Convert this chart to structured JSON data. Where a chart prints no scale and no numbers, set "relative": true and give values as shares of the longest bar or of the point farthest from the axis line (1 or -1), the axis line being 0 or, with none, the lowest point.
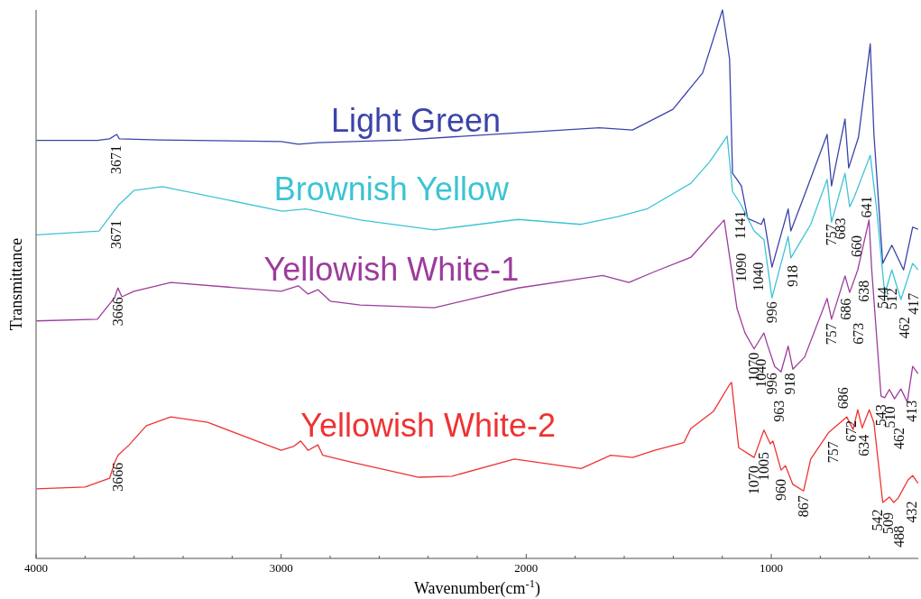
{
  "chart_data": {
    "type": "line",
    "relative": true,
    "xlabel": "Wavenumber(cm$^{-1}$)",
    "ylabel": "Transmittance",
    "xlim": [
      4000,
      400
    ],
    "xticks": [
      4000,
      {
        "value": 3800,
        "label": null
      },
      {
        "value": 3600,
        "label": null
      },
      {
        "value": 3400,
        "label": null
      },
      {
        "value": 3200,
        "label": null
      },
      3000,
      {
        "value": 2800,
        "label": null
      },
      {
        "value": 2600,
        "label": null
      },
      {
        "value": 2400,
        "label": null
      },
      {
        "value": 2200,
        "label": null
      },
      2000,
      {
        "value": 1800,
        "label": null
      },
      {
        "value": 1600,
        "label": null
      },
      {
        "value": 1400,
        "label": null
      },
      {
        "value": 1200,
        "label": null
      },
      1000,
      {
        "value": 800,
        "label": null
      },
      {
        "value": 600,
        "label": null
      }
    ],
    "grid": false,
    "marker": "none",
    "line_style": "solid",
    "series": [
      {
        "name": "Light Green",
        "color": "#3b44a8",
        "x": [
          4000,
          3750,
          3700,
          3671,
          3660,
          3500,
          3000,
          2930,
          2850,
          2500,
          1702,
          1566,
          1401,
          1280,
          1199,
          1170,
          1158,
          1140,
          1122,
          1096,
          1041,
          1030,
          997,
          931,
          920,
          864,
          772,
          754,
          699,
          684,
          644,
          596,
          581,
          545,
          508,
          460,
          423,
          401
        ],
        "values": [
          0.762,
          0.762,
          0.765,
          0.773,
          0.765,
          0.763,
          0.76,
          0.755,
          0.758,
          0.763,
          0.785,
          0.781,
          0.819,
          0.885,
          1,
          0.91,
          0.702,
          0.691,
          0.679,
          0.62,
          0.609,
          0.62,
          0.531,
          0.637,
          0.597,
          0.663,
          0.773,
          0.679,
          0.801,
          0.712,
          0.768,
          0.938,
          0.773,
          0.538,
          0.571,
          0.526,
          0.604,
          0.6
        ]
      },
      {
        "name": "Brownish Yellow",
        "color": "#3cc4d4",
        "x": [
          4000,
          3743,
          3666,
          3600,
          3485,
          2996,
          2900,
          2677,
          2375,
          2033,
          1776,
          1625,
          1508,
          1328,
          1250,
          1180,
          1158,
          1125,
          1070,
          1030,
          997,
          931,
          920,
          839,
          772,
          754,
          699,
          680,
          662,
          596,
          570,
          537,
          508,
          471,
          423,
          401
        ],
        "values": [
          0.59,
          0.597,
          0.643,
          0.671,
          0.678,
          0.633,
          0.637,
          0.617,
          0.599,
          0.618,
          0.609,
          0.623,
          0.637,
          0.684,
          0.724,
          0.77,
          0.669,
          0.646,
          0.597,
          0.581,
          0.475,
          0.587,
          0.548,
          0.609,
          0.691,
          0.613,
          0.702,
          0.641,
          0.658,
          0.735,
          0.637,
          0.482,
          0.526,
          0.472,
          0.538,
          0.526
        ]
      },
      {
        "name": "Yellowish White-1",
        "color": "#9c3c9c",
        "x": [
          4000,
          3750,
          3680,
          3666,
          3650,
          3600,
          3450,
          3000,
          2930,
          2890,
          2850,
          2800,
          2677,
          2375,
          2033,
          1776,
          1688,
          1581,
          1475,
          1328,
          1192,
          1162,
          1140,
          1107,
          1070,
          1048,
          1030,
          1016,
          986,
          960,
          931,
          912,
          864,
          772,
          754,
          699,
          680,
          647,
          601,
          590,
          552,
          537,
          518,
          497,
          471,
          445,
          423,
          401
        ],
        "values": [
          0.433,
          0.436,
          0.475,
          0.493,
          0.477,
          0.487,
          0.503,
          0.487,
          0.497,
          0.482,
          0.49,
          0.469,
          0.462,
          0.457,
          0.493,
          0.51,
          0.516,
          0.503,
          0.523,
          0.549,
          0.617,
          0.526,
          0.456,
          0.411,
          0.382,
          0.398,
          0.411,
          0.39,
          0.35,
          0.34,
          0.387,
          0.345,
          0.367,
          0.474,
          0.436,
          0.515,
          0.485,
          0.526,
          0.617,
          0.526,
          0.296,
          0.293,
          0.308,
          0.291,
          0.309,
          0.285,
          0.35,
          0.337
        ]
      },
      {
        "name": "Yellowish White-2",
        "color": "#ee3333",
        "x": [
          4000,
          3800,
          3700,
          3680,
          3666,
          3620,
          3550,
          3450,
          3300,
          3100,
          3000,
          2950,
          2920,
          2890,
          2850,
          2830,
          2700,
          2438,
          2302,
          2048,
          1776,
          1655,
          1566,
          1475,
          1357,
          1328,
          1236,
          1170,
          1162,
          1133,
          1070,
          1030,
          1004,
          993,
          960,
          942,
          912,
          868,
          839,
          765,
          692,
          666,
          647,
          629,
          600,
          581,
          545,
          518,
          500,
          482,
          442,
          423,
          401
        ],
        "values": [
          0.127,
          0.13,
          0.146,
          0.174,
          0.188,
          0.207,
          0.242,
          0.258,
          0.248,
          0.214,
          0.197,
          0.204,
          0.214,
          0.197,
          0.207,
          0.188,
          0.174,
          0.148,
          0.15,
          0.181,
          0.164,
          0.188,
          0.184,
          0.197,
          0.211,
          0.237,
          0.268,
          0.317,
          0.321,
          0.202,
          0.184,
          0.234,
          0.209,
          0.214,
          0.161,
          0.169,
          0.135,
          0.123,
          0.181,
          0.23,
          0.258,
          0.235,
          0.271,
          0.238,
          0.271,
          0.247,
          0.102,
          0.112,
          0.102,
          0.11,
          0.143,
          0.151,
          0.137
        ]
      }
    ],
    "annotations": [
      {
        "text": "3671",
        "x": 3671,
        "y": 0.773
      },
      {
        "text": "3671",
        "x": 3671,
        "y": 0.64
      },
      {
        "text": "3666",
        "x": 3666,
        "y": 0.493
      },
      {
        "text": "3666",
        "x": 3666,
        "y": 0.188
      },
      {
        "text": "1141",
        "x": 1141,
        "y": 0.691
      },
      {
        "text": "1090",
        "x": 1090,
        "y": 0.619
      },
      {
        "text": "1040",
        "x": 1040,
        "y": 0.609
      },
      {
        "text": "918",
        "x": 918,
        "y": 0.597
      },
      {
        "text": "757",
        "x": 757,
        "y": 0.679
      },
      {
        "text": "683",
        "x": 683,
        "y": 0.644
      },
      {
        "text": "660",
        "x": 660,
        "y": 0.658
      },
      {
        "text": "641",
        "x": 641,
        "y": 0.68
      },
      {
        "text": "996",
        "x": 996,
        "y": 0.475
      },
      {
        "text": "544",
        "x": 544,
        "y": 0.485
      },
      {
        "text": "512",
        "x": 512,
        "y": 0.521
      },
      {
        "text": "462",
        "x": 462,
        "y": 0.48
      },
      {
        "text": "417",
        "x": 417,
        "y": 0.535
      },
      {
        "text": "1070",
        "x": 1070,
        "y": 0.382
      },
      {
        "text": "1040",
        "x": 1040,
        "y": 0.4
      },
      {
        "text": "996",
        "x": 996,
        "y": 0.363
      },
      {
        "text": "963",
        "x": 963,
        "y": 0.341
      },
      {
        "text": "918",
        "x": 918,
        "y": 0.353
      },
      {
        "text": "757",
        "x": 757,
        "y": 0.442
      },
      {
        "text": "686",
        "x": 686,
        "y": 0.494
      },
      {
        "text": "673",
        "x": 673,
        "y": 0.494
      },
      {
        "text": "638",
        "x": 638,
        "y": 0.548
      },
      {
        "text": "543",
        "x": 543,
        "y": 0.294
      },
      {
        "text": "510",
        "x": 510,
        "y": 0.302
      },
      {
        "text": "462",
        "x": 462,
        "y": 0.301
      },
      {
        "text": "413",
        "x": 413,
        "y": 0.344
      },
      {
        "text": "1070",
        "x": 1070,
        "y": 0.184
      },
      {
        "text": "1005",
        "x": 1005,
        "y": 0.209
      },
      {
        "text": "960",
        "x": 960,
        "y": 0.161
      },
      {
        "text": "867",
        "x": 867,
        "y": 0.123
      },
      {
        "text": "757",
        "x": 757,
        "y": 0.233
      },
      {
        "text": "686",
        "x": 686,
        "y": 0.253
      },
      {
        "text": "672",
        "x": 672,
        "y": 0.24
      },
      {
        "text": "634",
        "x": 634,
        "y": 0.244
      },
      {
        "text": "542",
        "x": 542,
        "y": 0.103
      },
      {
        "text": "509",
        "x": 509,
        "y": 0.107
      },
      {
        "text": "488",
        "x": 488,
        "y": 0.109
      },
      {
        "text": "432",
        "x": 432,
        "y": 0.147
      }
    ]
  }
}
